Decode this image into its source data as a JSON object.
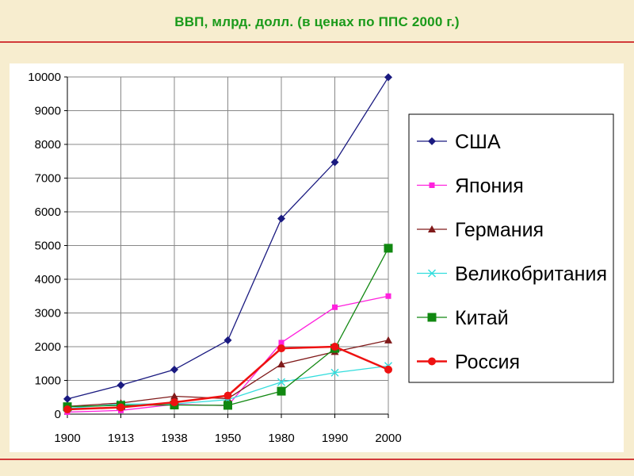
{
  "slide": {
    "title": "ВВП, млрд. долл. (в ценах по ППС 2000 г.)"
  },
  "colors": {
    "background": "#f7edcf",
    "title": "#1a9a1a",
    "rule": "#d23a3a",
    "grid": "#888888"
  },
  "chart_data": {
    "type": "line",
    "title": "ВВП, млрд. долл. (в ценах по ППС 2000 г.)",
    "xlabel": "",
    "ylabel": "",
    "categories": [
      "1900",
      "1913",
      "1938",
      "1950",
      "1980",
      "1990",
      "2000"
    ],
    "ylim": [
      0,
      10000
    ],
    "yticks": [
      0,
      1000,
      2000,
      3000,
      4000,
      5000,
      6000,
      7000,
      8000,
      9000,
      10000
    ],
    "grid": "horizontal",
    "legend_position": "right",
    "series": [
      {
        "name": "США",
        "color": "#1a1a80",
        "marker": "diamond",
        "values": [
          450,
          860,
          1320,
          2190,
          5800,
          7470,
          9990
        ]
      },
      {
        "name": "Япония",
        "color": "#ff22dd",
        "marker": "square",
        "values": [
          60,
          110,
          290,
          250,
          2120,
          3170,
          3500
        ]
      },
      {
        "name": "Германия",
        "color": "#801a1a",
        "marker": "triangle",
        "values": [
          230,
          330,
          530,
          460,
          1480,
          1850,
          2190
        ]
      },
      {
        "name": "Великобритания",
        "color": "#33dddd",
        "marker": "x",
        "values": [
          170,
          300,
          300,
          430,
          950,
          1230,
          1430
        ]
      },
      {
        "name": "Китай",
        "color": "#118811",
        "marker": "square",
        "values": [
          220,
          260,
          270,
          260,
          680,
          1950,
          4920
        ]
      },
      {
        "name": "Россия",
        "color": "#ee1111",
        "marker": "circle",
        "values": [
          140,
          200,
          350,
          550,
          1950,
          2000,
          1320
        ]
      }
    ]
  }
}
